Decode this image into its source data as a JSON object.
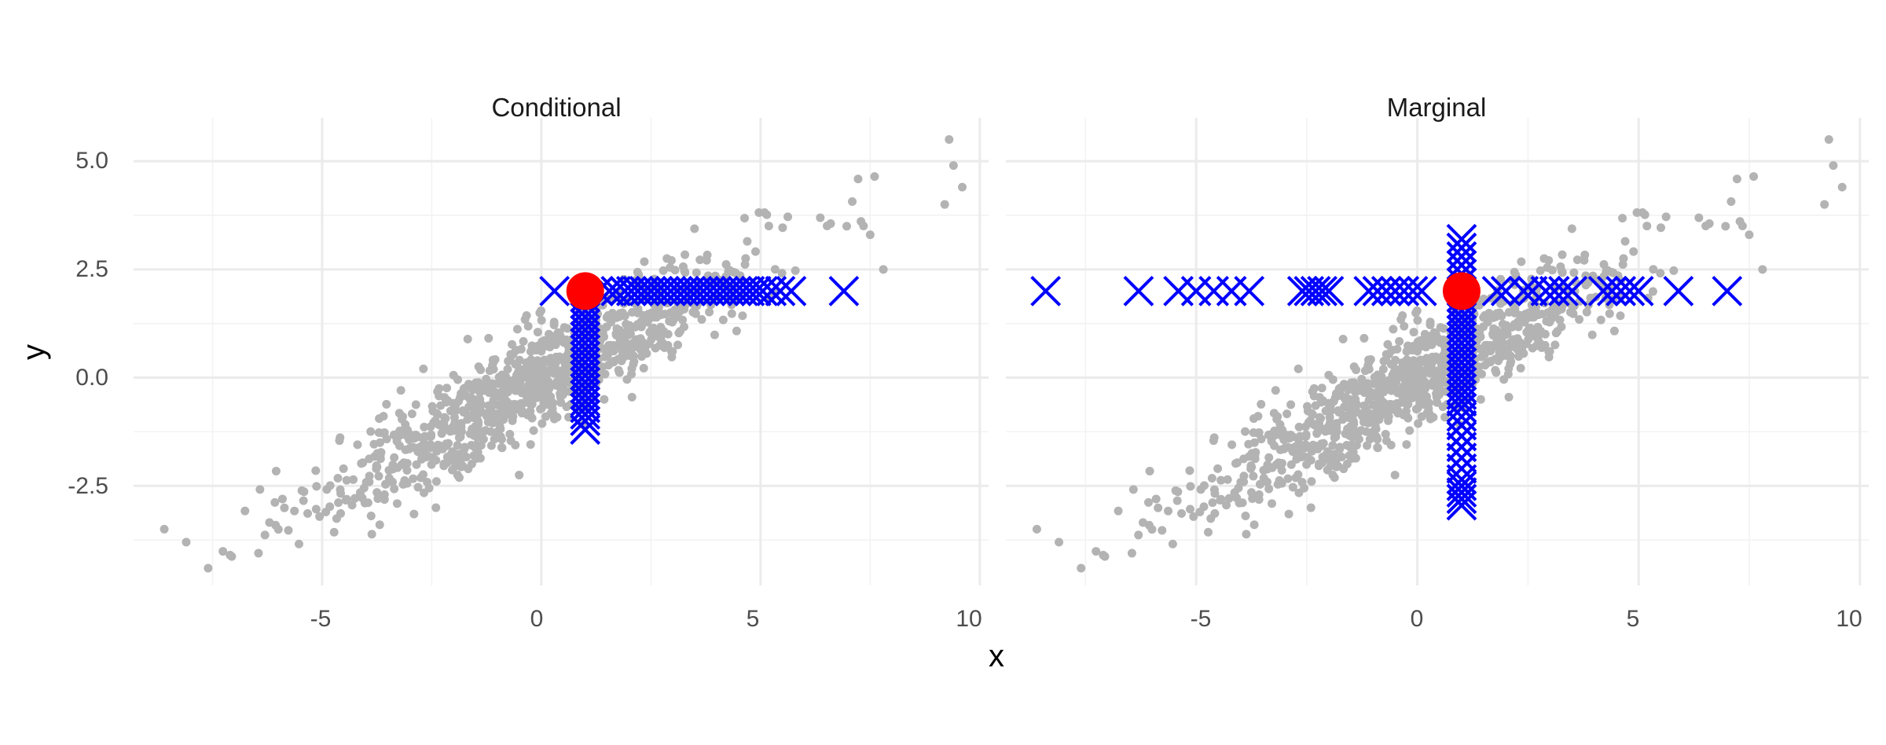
{
  "chart_data": {
    "type": "scatter",
    "xlabel": "x",
    "ylabel": "y",
    "xlim": [
      -9.3,
      10.2
    ],
    "ylim": [
      -4.8,
      6.0
    ],
    "x_ticks": [
      -5,
      0,
      5,
      10
    ],
    "x_tick_labels": [
      "-5",
      "0",
      "5",
      "10"
    ],
    "y_ticks": [
      -2.5,
      0,
      2.5,
      5
    ],
    "y_tick_labels": [
      "-2.5",
      "0.0",
      "2.5",
      "5.0"
    ],
    "grid": true,
    "colors": {
      "cloud": "#b3b3b3",
      "draws": "#0000ff",
      "observed": "#ff0000",
      "grid_major": "#ebebeb",
      "grid_minor": "#f2f2f2"
    },
    "observed_point": {
      "x": 1.0,
      "y": 2.0
    },
    "background_points": {
      "n": 1000,
      "x_mean": 0.0,
      "x_sd": 2.5,
      "y_intercept": 0.0,
      "y_slope": 0.55,
      "y_resid_sd": 0.6,
      "extra": [
        [
          9.3,
          5.5
        ],
        [
          9.4,
          4.9
        ],
        [
          9.6,
          4.4
        ],
        [
          9.2,
          4.0
        ],
        [
          7.8,
          2.5
        ],
        [
          7.5,
          3.3
        ],
        [
          -8.6,
          -3.5
        ],
        [
          -8.1,
          -3.8
        ],
        [
          -7.6,
          -4.4
        ],
        [
          -7.1,
          -4.1
        ]
      ]
    },
    "panels": [
      {
        "title": "Conditional",
        "horizontal_draws_x": [
          0.3,
          1.3,
          1.55,
          1.7,
          1.9,
          2.05,
          2.2,
          2.35,
          2.5,
          2.65,
          2.8,
          2.95,
          3.1,
          3.25,
          3.4,
          3.55,
          3.7,
          3.85,
          4.0,
          4.15,
          4.3,
          4.45,
          4.6,
          4.75,
          4.9,
          5.05,
          5.25,
          5.45,
          5.7,
          6.9
        ],
        "vertical_draws_y": [
          -1.2,
          -1.0,
          -0.85,
          -0.7,
          -0.55,
          -0.4,
          -0.25,
          -0.1,
          0.05,
          0.2,
          0.35,
          0.5,
          0.65,
          0.8,
          0.95,
          1.1,
          1.25,
          1.4,
          1.55,
          1.7,
          1.85
        ]
      },
      {
        "title": "Marginal",
        "horizontal_draws_x": [
          -8.4,
          -6.3,
          -5.4,
          -5.0,
          -4.6,
          -4.2,
          -3.8,
          -2.6,
          -2.45,
          -2.3,
          -2.15,
          -2.0,
          -1.1,
          -0.9,
          -0.7,
          -0.5,
          -0.3,
          -0.1,
          0.1,
          1.8,
          2.0,
          2.4,
          2.6,
          2.9,
          3.1,
          3.3,
          3.5,
          4.2,
          4.4,
          4.6,
          4.8,
          5.0,
          5.9,
          7.0
        ],
        "vertical_draws_y": [
          -2.95,
          -2.8,
          -2.65,
          -2.5,
          -2.35,
          -2.1,
          -1.85,
          -1.6,
          -1.35,
          -1.1,
          -0.9,
          -0.7,
          -0.55,
          -0.4,
          -0.25,
          -0.1,
          0.05,
          0.2,
          0.35,
          0.5,
          0.65,
          0.8,
          0.95,
          1.1,
          1.25,
          1.4,
          1.55,
          1.7,
          1.85,
          2.2,
          2.4,
          2.6,
          2.8,
          3.0,
          3.2
        ]
      }
    ]
  }
}
